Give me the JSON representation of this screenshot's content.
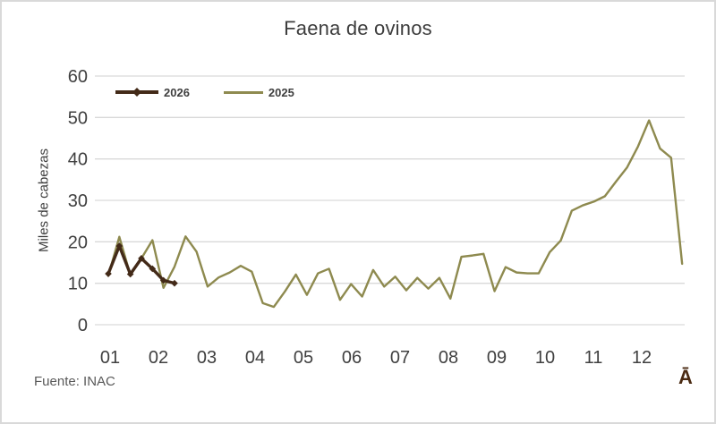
{
  "chart_data": {
    "type": "line",
    "title": "Faena de ovinos",
    "xlabel": "",
    "ylabel": "Miles de cabezas",
    "x_unit": "week of year (labeled by month)",
    "x_tick_labels": [
      "01",
      "02",
      "03",
      "04",
      "05",
      "06",
      "07",
      "08",
      "09",
      "10",
      "11",
      "12"
    ],
    "yticks": [
      0,
      10,
      20,
      30,
      40,
      50,
      60
    ],
    "ylim": [
      0,
      60
    ],
    "grid": "horizontal-only",
    "grid_color": "#d9d9d9",
    "legend_position": "top-left-inside",
    "series": [
      {
        "name": "2026",
        "color": "#432a18",
        "marker": "diamond",
        "values": [
          12.3,
          19.0,
          12.2,
          16.0,
          13.5,
          10.7,
          10.0
        ]
      },
      {
        "name": "2025",
        "color": "#8e8a4f",
        "marker": "none",
        "values": [
          11.8,
          21.2,
          12.0,
          16.0,
          20.4,
          8.9,
          14.0,
          21.3,
          17.6,
          9.2,
          11.4,
          12.6,
          14.2,
          12.8,
          5.2,
          4.3,
          8.0,
          12.1,
          7.2,
          12.4,
          13.5,
          6.0,
          9.8,
          6.8,
          13.2,
          9.2,
          11.6,
          8.3,
          11.3,
          8.7,
          11.3,
          6.3,
          16.4,
          16.7,
          17.1,
          8.1,
          13.9,
          12.6,
          12.4,
          12.4,
          17.5,
          20.3,
          27.5,
          28.8,
          29.7,
          31.0,
          34.5,
          37.9,
          43.0,
          49.3,
          42.5,
          40.3,
          14.7
        ]
      }
    ]
  },
  "footer": {
    "source": "Fuente: INAC",
    "watermark": "Ā"
  },
  "colors": {
    "frame_border": "#d9d9d9",
    "text_primary": "#3d3d3d",
    "text_secondary": "#595959",
    "watermark": "#4a2a12"
  }
}
